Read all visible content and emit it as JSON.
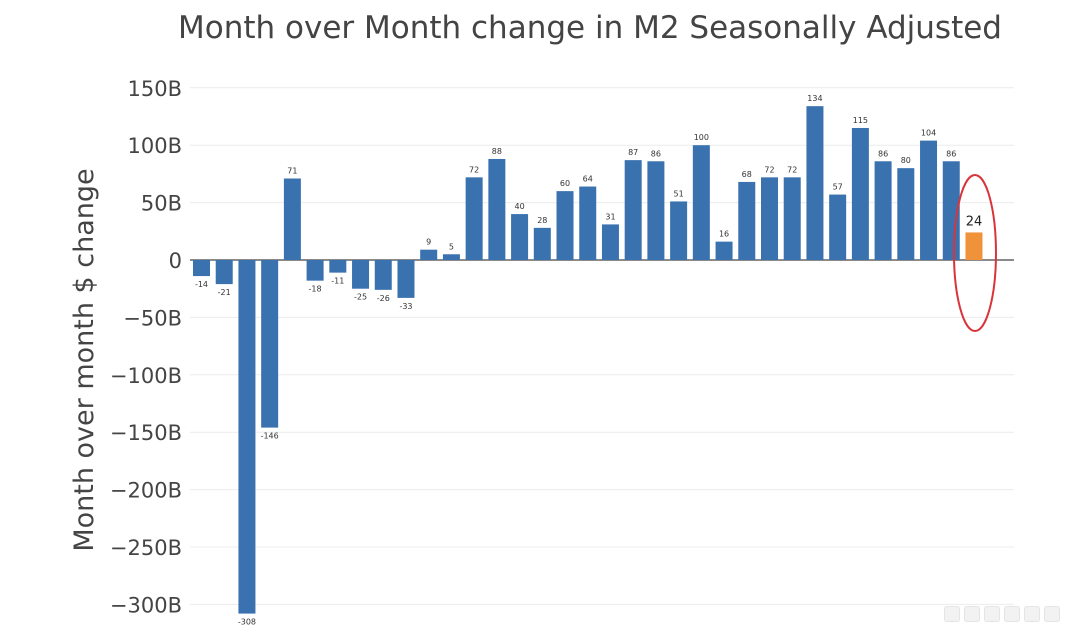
{
  "chart_data": {
    "type": "bar",
    "title": "Month over Month change in M2 Seasonally Adjusted",
    "xlabel": "",
    "ylabel": "Month over month $ change",
    "ylim": [
      -310,
      150
    ],
    "yticks": [
      150,
      100,
      50,
      0,
      -50,
      -100,
      -150,
      -200,
      -250,
      -300
    ],
    "ytick_labels": [
      "150B",
      "100B",
      "50B",
      "0",
      "−50B",
      "−100B",
      "−150B",
      "−200B",
      "−250B",
      "−300B"
    ],
    "grid": true,
    "legend": "none",
    "values": [
      -14,
      -21,
      -308,
      -146,
      71,
      -18,
      -11,
      -25,
      -26,
      -33,
      9,
      5,
      72,
      88,
      40,
      28,
      60,
      64,
      31,
      87,
      86,
      51,
      100,
      16,
      68,
      72,
      72,
      134,
      57,
      115,
      86,
      80,
      104,
      86,
      24
    ],
    "labels": [
      "-14",
      "-21",
      "-308",
      "-146",
      "71",
      "-18",
      "-11",
      "-25",
      "-26",
      "-33",
      "9",
      "5",
      "72",
      "88",
      "40",
      "28",
      "60",
      "64",
      "31",
      "87",
      "86",
      "51",
      "100",
      "16",
      "68",
      "72",
      "72",
      "134",
      "57",
      "115",
      "86",
      "80",
      "104",
      "86",
      "24"
    ],
    "highlight_index": 34,
    "colors": {
      "bar": "#3a72b0",
      "highlight": "#f0923a",
      "circle": "#d9343a"
    }
  }
}
